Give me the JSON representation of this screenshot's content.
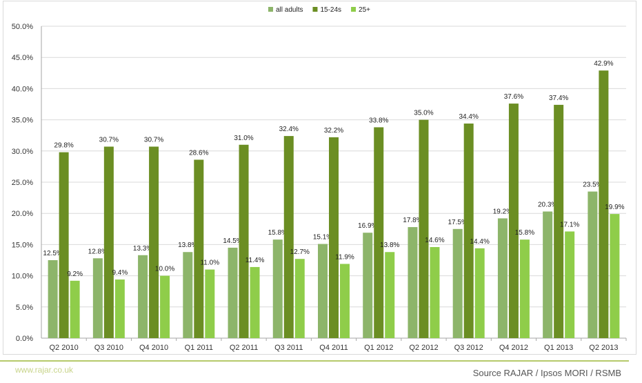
{
  "colors": {
    "all_adults": "#8db56a",
    "age_15_24": "#6b8e23",
    "age_25_plus": "#8fcd4a",
    "grid": "#d9d9d9",
    "accent_rule": "#b5c96a"
  },
  "chart_data": {
    "type": "bar",
    "categories": [
      "Q2 2010",
      "Q3 2010",
      "Q4 2010",
      "Q1 2011",
      "Q2 2011",
      "Q3 2011",
      "Q4 2011",
      "Q1 2012",
      "Q2 2012",
      "Q3 2012",
      "Q4 2012",
      "Q1 2013",
      "Q2 2013"
    ],
    "series": [
      {
        "name": "all adults",
        "values": [
          12.5,
          12.8,
          13.3,
          13.8,
          14.5,
          15.8,
          15.1,
          16.9,
          17.8,
          17.5,
          19.2,
          20.3,
          23.5
        ],
        "labels": [
          "12.5%",
          "12.8%",
          "13.3%",
          "13.8%",
          "14.5%",
          "15.8%",
          "15.1%",
          "16.9%",
          "17.8%",
          "17.5%",
          "19.2%",
          "20.3%",
          "23.5%"
        ]
      },
      {
        "name": "15-24s",
        "values": [
          29.8,
          30.7,
          30.7,
          28.6,
          31.0,
          32.4,
          32.2,
          33.8,
          35.0,
          34.4,
          37.6,
          37.4,
          42.9
        ],
        "labels": [
          "29.8%",
          "30.7%",
          "30.7%",
          "28.6%",
          "31.0%",
          "32.4%",
          "32.2%",
          "33.8%",
          "35.0%",
          "34.4%",
          "37.6%",
          "37.4%",
          "42.9%"
        ]
      },
      {
        "name": "25+",
        "values": [
          9.2,
          9.4,
          10.0,
          11.0,
          11.4,
          12.7,
          11.9,
          13.8,
          14.6,
          14.4,
          15.8,
          17.1,
          19.9
        ],
        "labels": [
          "9.2%",
          "9.4%",
          "10.0%",
          "11.0%",
          "11.4%",
          "12.7%",
          "11.9%",
          "13.8%",
          "14.6%",
          "14.4%",
          "15.8%",
          "17.1%",
          "19.9%"
        ]
      }
    ],
    "yticks": [
      "0.0%",
      "5.0%",
      "10.0%",
      "15.0%",
      "20.0%",
      "25.0%",
      "30.0%",
      "35.0%",
      "40.0%",
      "45.0%",
      "50.0%"
    ],
    "ylim": [
      0,
      50
    ],
    "grid": true,
    "legend_position": "top-center"
  },
  "footer": {
    "website": "www.rajar.co.uk",
    "source": "Source RAJAR / Ipsos MORI / RSMB"
  }
}
